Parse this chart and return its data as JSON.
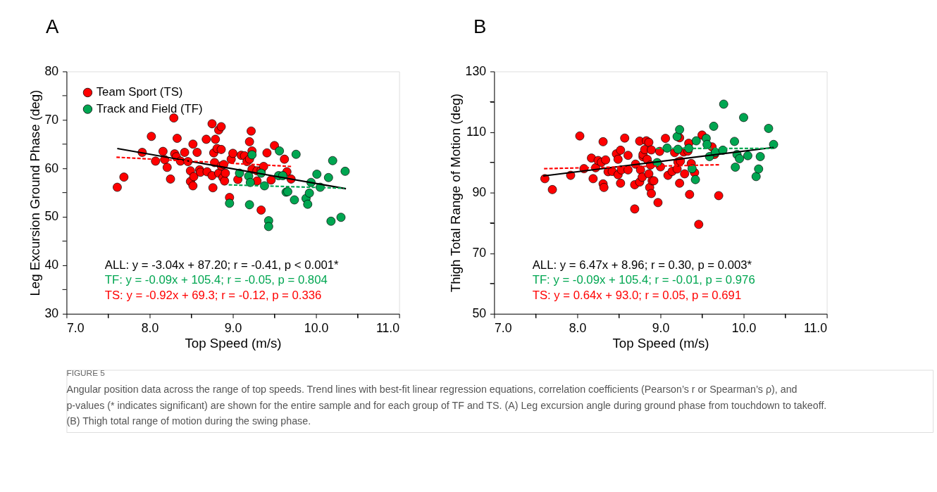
{
  "chart_data": [
    {
      "type": "scatter",
      "title": "A",
      "xlabel": "Top Speed (m/s)",
      "ylabel": "Leg Excursion Ground Phase (deg)",
      "xlim": [
        7,
        11
      ],
      "ylim": [
        30,
        80
      ],
      "xticks": [
        {
          "value": 7,
          "label": "7.0"
        },
        {
          "value": 7.5,
          "label": null
        },
        {
          "value": 8,
          "label": "8.0"
        },
        {
          "value": 8.5,
          "label": null
        },
        {
          "value": 9,
          "label": "9.0"
        },
        {
          "value": 9.5,
          "label": null
        },
        {
          "value": 10,
          "label": "10.0"
        },
        {
          "value": 10.5,
          "label": null
        },
        {
          "value": 11,
          "label": "11.0"
        }
      ],
      "yticks": [
        30,
        {
          "value": 35,
          "label": null
        },
        40,
        {
          "value": 45,
          "label": null
        },
        50,
        {
          "value": 55,
          "label": null
        },
        60,
        {
          "value": 65,
          "label": null
        },
        70,
        {
          "value": 75,
          "label": null
        },
        80
      ],
      "grid": false,
      "legend": "top left",
      "marker": "circle",
      "series": [
        {
          "name": "Team Sport (TS)",
          "color": "#ff0000",
          "x": [
            7.61,
            7.69,
            7.91,
            8.02,
            8.07,
            8.16,
            8.18,
            8.21,
            8.25,
            8.29,
            8.3,
            8.32,
            8.33,
            8.37,
            8.42,
            8.46,
            8.49,
            8.49,
            8.52,
            8.52,
            8.53,
            8.57,
            8.6,
            8.61,
            8.68,
            8.69,
            8.75,
            8.75,
            8.76,
            8.77,
            8.78,
            8.79,
            8.81,
            8.83,
            8.83,
            8.86,
            8.86,
            8.86,
            8.89,
            8.88,
            8.9,
            8.91,
            8.96,
            8.98,
            9.0,
            9.06,
            9.1,
            9.14,
            9.17,
            9.2,
            9.22,
            9.2,
            9.23,
            9.23,
            9.29,
            9.29,
            9.34,
            9.34,
            9.37,
            9.41,
            9.46,
            9.5,
            9.62,
            9.65,
            9.7
          ],
          "values": [
            56.1,
            58.2,
            63.3,
            66.6,
            61.5,
            63.5,
            61.8,
            60.2,
            57.8,
            70.4,
            63.0,
            62.4,
            66.2,
            61.5,
            63.3,
            61.4,
            59.5,
            57.3,
            65.0,
            56.4,
            58.3,
            63.3,
            59.7,
            59.2,
            66.0,
            59.3,
            69.2,
            58.5,
            56.0,
            63.2,
            61.2,
            66.0,
            64.1,
            59.0,
            67.9,
            68.6,
            63.9,
            60.5,
            60.8,
            58.1,
            57.4,
            59.0,
            54.0,
            61.9,
            63.1,
            57.7,
            62.7,
            62.6,
            61.4,
            65.5,
            67.7,
            61.9,
            63.6,
            59.8,
            57.4,
            59.5,
            59.6,
            51.4,
            60.4,
            63.2,
            57.6,
            64.7,
            61.9,
            59.3,
            57.8
          ]
        },
        {
          "name": "Track and Field (TF)",
          "color": "#00a651",
          "x": [
            8.96,
            9.08,
            9.19,
            9.21,
            9.2,
            9.23,
            9.34,
            9.38,
            9.43,
            9.43,
            9.56,
            9.55,
            9.6,
            9.64,
            9.66,
            9.74,
            9.76,
            9.88,
            9.9,
            9.92,
            9.94,
            10.01,
            10.05,
            10.15,
            10.18,
            10.2,
            10.3,
            10.35
          ],
          "values": [
            52.8,
            59.0,
            58.4,
            57.1,
            52.5,
            62.8,
            59.0,
            56.4,
            49.2,
            48.0,
            63.6,
            58.5,
            58.5,
            55.1,
            55.2,
            53.5,
            62.9,
            53.8,
            52.6,
            54.9,
            57.1,
            58.8,
            56.1,
            58.1,
            49.1,
            61.6,
            49.9,
            59.4
          ]
        },
        {
          "type": "line",
          "color": "#000000",
          "line_style": "solid",
          "marker": "none",
          "x": [
            7.61,
            10.36
          ],
          "values": [
            64.1,
            55.8
          ]
        },
        {
          "type": "line",
          "color": "#00a651",
          "line_style": "dashed",
          "marker": "none",
          "x": [
            8.95,
            10.34
          ],
          "values": [
            56.6,
            55.9
          ]
        },
        {
          "type": "line",
          "color": "#ff0000",
          "line_style": "dashed",
          "marker": "none",
          "x": [
            7.6,
            9.7
          ],
          "values": [
            62.3,
            60.4
          ]
        }
      ],
      "annotations": [
        "ALL: y = -3.04x + 87.20; r = -0.41, p < 0.001*",
        "TF: y = -0.09x + 105.4; r = -0.05, p = 0.804",
        "TS: y = -0.92x + 69.3; r = -0.12, p = 0.336"
      ]
    },
    {
      "type": "scatter",
      "title": "B",
      "xlabel": "Top Speed (m/s)",
      "ylabel": "Thigh Total Range of Motion (deg)",
      "xlim": [
        7,
        11
      ],
      "ylim": [
        50,
        130
      ],
      "xticks": [
        {
          "value": 7,
          "label": "7.0"
        },
        {
          "value": 7.5,
          "label": null
        },
        {
          "value": 8,
          "label": "8.0"
        },
        {
          "value": 8.5,
          "label": null
        },
        {
          "value": 9,
          "label": "9.0"
        },
        {
          "value": 9.5,
          "label": null
        },
        {
          "value": 10,
          "label": "10.0"
        },
        {
          "value": 10.5,
          "label": null
        },
        {
          "value": 11,
          "label": "11.0"
        }
      ],
      "yticks": [
        50,
        {
          "value": 60,
          "label": null
        },
        70,
        {
          "value": 80,
          "label": null
        },
        90,
        {
          "value": 100,
          "label": null
        },
        110,
        {
          "value": 120,
          "label": null
        },
        130
      ],
      "grid": false,
      "marker": "circle",
      "series": [
        {
          "color": "#ff0000",
          "x": [
            7.61,
            7.7,
            7.92,
            8.03,
            8.08,
            8.17,
            8.19,
            8.22,
            8.25,
            8.29,
            8.31,
            8.31,
            8.32,
            8.34,
            8.37,
            8.42,
            8.47,
            8.49,
            8.49,
            8.52,
            8.52,
            8.53,
            8.57,
            8.61,
            8.61,
            8.69,
            8.69,
            8.7,
            8.75,
            8.75,
            8.76,
            8.78,
            8.79,
            8.79,
            8.81,
            8.83,
            8.84,
            8.86,
            8.86,
            8.87,
            8.88,
            8.89,
            8.89,
            8.9,
            8.92,
            8.97,
            8.99,
            9.0,
            9.06,
            9.09,
            9.14,
            9.17,
            9.2,
            9.21,
            9.23,
            9.23,
            9.24,
            9.28,
            9.29,
            9.33,
            9.34,
            9.35,
            9.37,
            9.41,
            9.46,
            9.5,
            9.62,
            9.65,
            9.7
          ],
          "values": [
            94.6,
            91.0,
            95.7,
            108.7,
            97.9,
            101.4,
            94.6,
            98.2,
            100.6,
            100.0,
            106.8,
            92.9,
            91.7,
            100.8,
            96.9,
            97.0,
            102.8,
            101.0,
            95.9,
            104.0,
            93.1,
            97.5,
            108.0,
            102.3,
            97.5,
            92.6,
            84.6,
            99.4,
            93.5,
            107.0,
            97.5,
            95.1,
            101.8,
            102.6,
            104.2,
            107.1,
            101.0,
            106.6,
            96.2,
            91.7,
            99.1,
            104.1,
            89.7,
            93.9,
            93.9,
            86.7,
            103.6,
            98.5,
            107.9,
            95.7,
            97.0,
            103.2,
            97.8,
            100.1,
            108.1,
            93.1,
            100.4,
            103.4,
            96.2,
            103.7,
            106.3,
            89.4,
            99.6,
            96.6,
            79.5,
            109.0,
            105.1,
            102.6,
            89.0
          ]
        },
        {
          "color": "#00a651",
          "x": [
            8.96,
            9.08,
            9.2,
            9.21,
            9.23,
            9.34,
            9.38,
            9.42,
            9.43,
            9.55,
            9.56,
            9.59,
            9.64,
            9.66,
            9.75,
            9.76,
            9.89,
            9.9,
            9.92,
            9.95,
            10.0,
            10.05,
            10.15,
            10.18,
            10.2,
            10.3,
            10.36
          ],
          "values": [
            99.9,
            104.7,
            108.5,
            104.3,
            110.8,
            104.6,
            97.9,
            94.3,
            107.1,
            107.9,
            105.9,
            101.9,
            111.9,
            103.3,
            104.0,
            119.2,
            106.9,
            98.4,
            102.6,
            101.2,
            114.8,
            102.2,
            95.3,
            97.8,
            101.9,
            111.2,
            105.9
          ]
        },
        {
          "type": "line",
          "color": "#000000",
          "line_style": "solid",
          "marker": "none",
          "x": [
            7.59,
            10.36
          ],
          "values": [
            95.5,
            104.9
          ]
        },
        {
          "type": "line",
          "color": "#00a651",
          "line_style": "dashed",
          "marker": "none",
          "x": [
            8.95,
            10.35
          ],
          "values": [
            104.6,
            104.6
          ]
        },
        {
          "type": "line",
          "color": "#ff0000",
          "line_style": "dashed",
          "marker": "none",
          "x": [
            7.6,
            9.72
          ],
          "values": [
            97.9,
            99.2
          ]
        }
      ],
      "annotations": [
        "ALL: y = 6.47x + 8.96; r = 0.30, p = 0.003*",
        "TF: y = -0.09x + 105.4; r = -0.01, p = 0.976",
        "TS: y = 0.64x + 93.0; r = 0.05, p = 0.691",
        "FIGURE 5",
        "Angular position data across the range of top speeds. Trend lines with best-fit linear regression equations, correlation coefficients (Pearson’s r or Spearman’s ρ), and p-values (* indicates significant) are shown for the entire sample and for each group of TF and TS. (A) Leg excursion angle during ground phase from touchdown to takeoff. (B) Thigh total range of motion during the swing phase."
      ]
    }
  ]
}
